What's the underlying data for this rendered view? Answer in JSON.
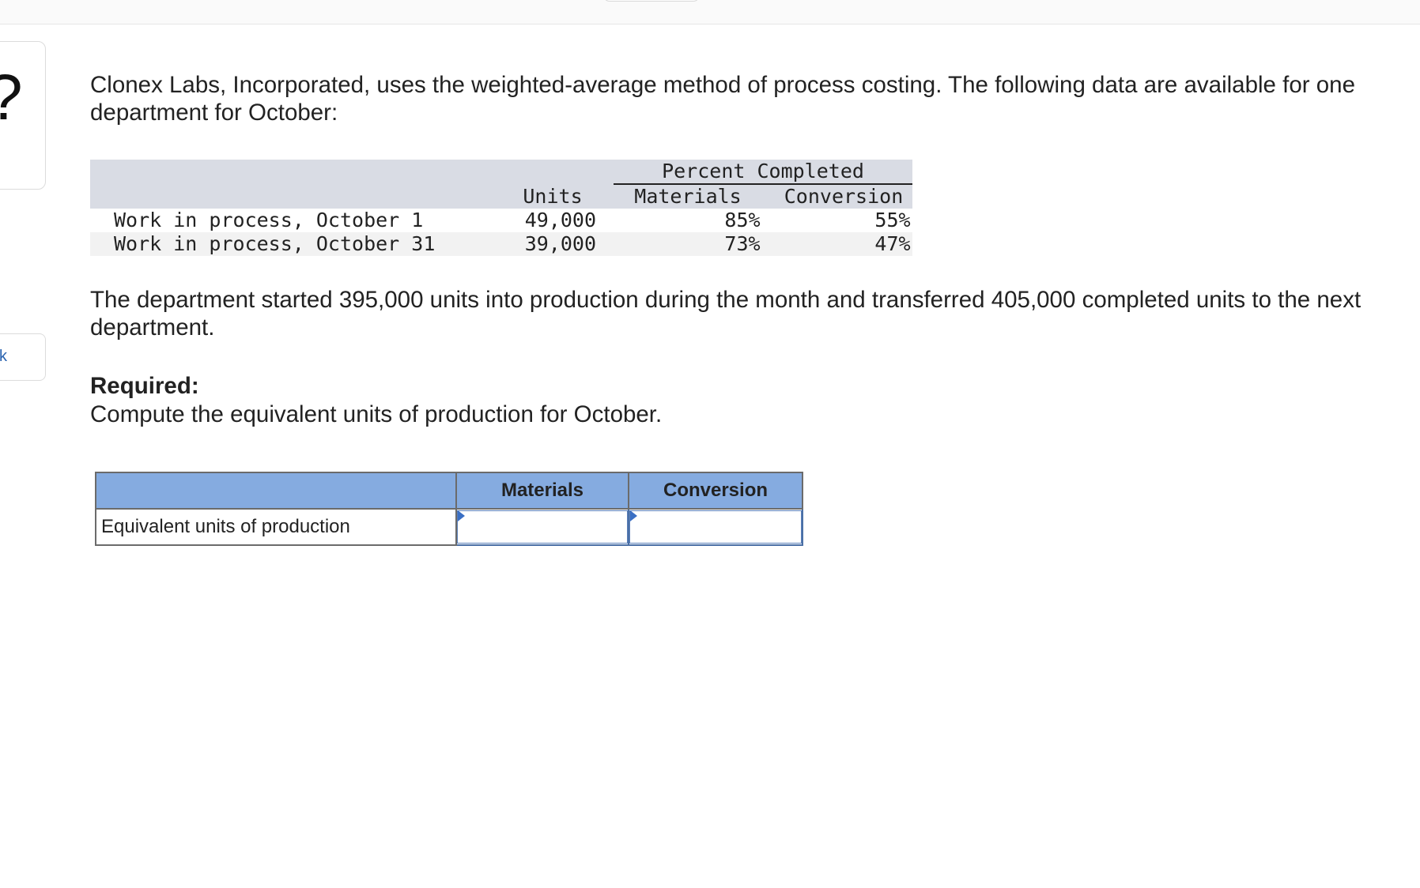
{
  "sidebar": {
    "card_glyph": "?",
    "link_label": "k"
  },
  "problem": {
    "intro": "Clonex Labs, Incorporated, uses the weighted-average method of process costing. The following data are available for one department for October:",
    "data_table": {
      "header_group": "Percent Completed",
      "col_units": "Units",
      "col_materials": "Materials",
      "col_conversion": "Conversion",
      "rows": [
        {
          "label": "Work in process, October 1",
          "units": "49,000",
          "materials": "85%",
          "conversion": "55%"
        },
        {
          "label": "Work in process, October 31",
          "units": "39,000",
          "materials": "73%",
          "conversion": "47%"
        }
      ]
    },
    "body": "The department started 395,000 units into production during the month and transferred 405,000 completed units to the next department.",
    "required_title": "Required:",
    "required_text": "Compute the equivalent units of production for October."
  },
  "answer_table": {
    "header_blank": "",
    "col_materials": "Materials",
    "col_conversion": "Conversion",
    "row_label": "Equivalent units of production",
    "materials_value": "",
    "conversion_value": ""
  }
}
